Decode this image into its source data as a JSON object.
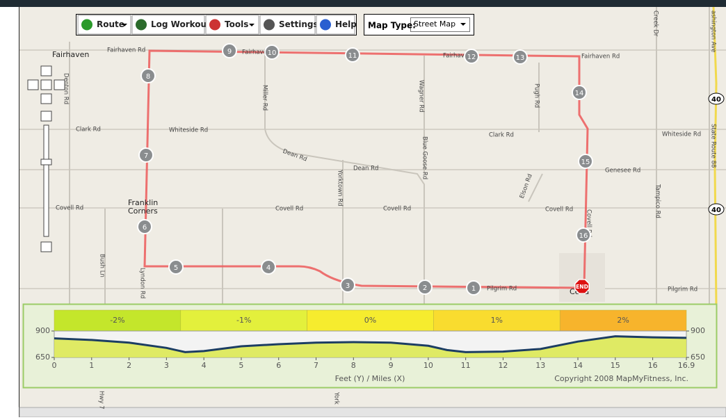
{
  "toolbar": {
    "buttons": [
      "Route",
      "Log Workout",
      "Tools",
      "Settings",
      "Help"
    ],
    "map_type_label": "Map Type:",
    "map_type_value": "Street Map"
  },
  "map": {
    "towns": [
      "Fairhaven",
      "Franklin",
      "Corners",
      "Ceda"
    ],
    "road_labels": [
      "Fairhaven Rd",
      "Fairhaven",
      "Fairhav",
      "Fairhaven Rd",
      "Clark Rd",
      "Whiteside Rd",
      "Clark Rd",
      "Whiteside Rd",
      "Dean Rd",
      "Dean Rd",
      "Genesee Rd",
      "Covell Rd",
      "Covell Rd",
      "Covell Rd",
      "Covell Rd",
      "Covell Rd",
      "Pilgrim Rd",
      "Pilgrim Rd",
      "Denton Rd",
      "Miller Rd",
      "Wagner Rd",
      "Pugh Rd",
      "Yorktown Rd",
      "Blue Goose Rd",
      "Elson Rd",
      "Tampico Rd",
      "Bush Ln",
      "Lyndon Rd",
      "Creek Dr",
      "ashington Ave",
      "State Route 88",
      "Hwy 7",
      "York"
    ],
    "shields": [
      "40",
      "40"
    ],
    "markers": [
      "1",
      "2",
      "3",
      "4",
      "5",
      "6",
      "7",
      "8",
      "9",
      "10",
      "11",
      "12",
      "13",
      "14",
      "15",
      "16",
      "END"
    ]
  },
  "chart_data": {
    "type": "line",
    "grades": [
      "-2%",
      "-1%",
      "0%",
      "1%",
      "2%"
    ],
    "x": [
      0,
      1,
      2,
      3,
      3.5,
      4,
      5,
      6,
      7,
      8,
      9,
      10,
      10.5,
      11,
      12,
      13,
      14,
      15,
      16,
      16.9
    ],
    "values": [
      830,
      815,
      790,
      740,
      700,
      710,
      755,
      775,
      790,
      795,
      790,
      760,
      720,
      700,
      705,
      730,
      800,
      850,
      840,
      835
    ],
    "color": "#1c3d63",
    "xlim": [
      0,
      16.9
    ],
    "xticks": [
      0,
      1,
      2,
      3,
      4,
      5,
      6,
      7,
      8,
      9,
      10,
      11,
      12,
      13,
      14,
      15,
      16,
      16.9
    ],
    "ylim": [
      650,
      900
    ],
    "yticks": [
      650,
      900
    ],
    "axis_label": "Feet (Y) / Miles (X)",
    "copyright": "Copyright 2008 MapMyFitness, Inc."
  }
}
